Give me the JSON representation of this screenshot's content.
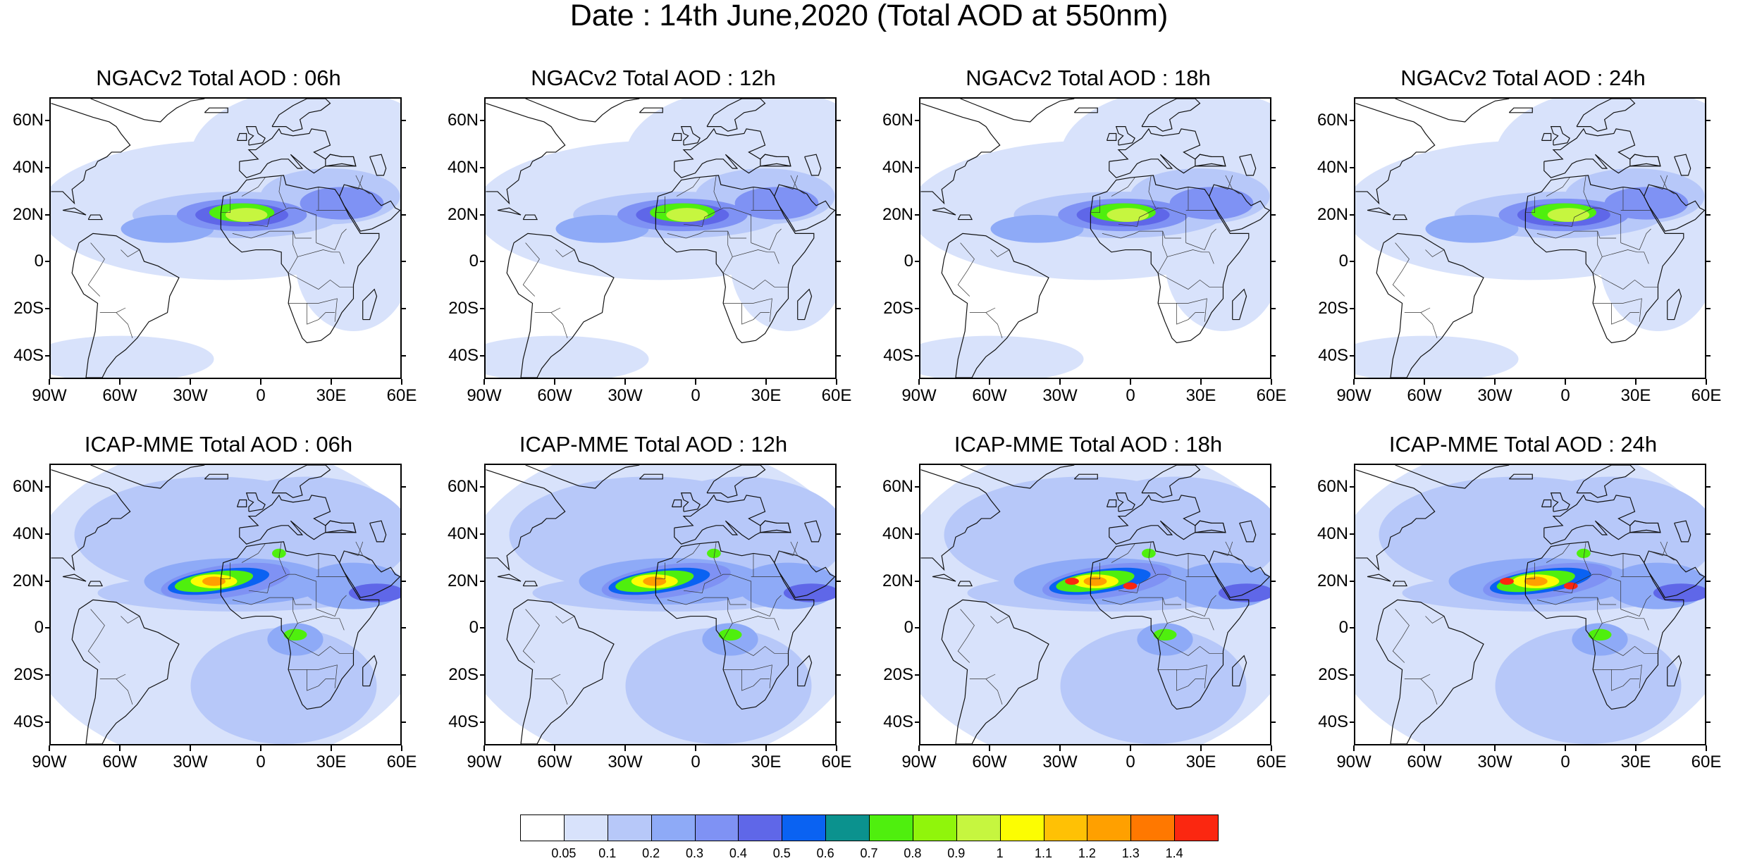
{
  "figure_title": "Date : 14th June,2020 (Total AOD at 550nm)",
  "panels": [
    {
      "title": "NGACv2 Total AOD : 06h",
      "row": 0,
      "col": 0
    },
    {
      "title": "NGACv2 Total AOD : 12h",
      "row": 0,
      "col": 1
    },
    {
      "title": "NGACv2 Total AOD : 18h",
      "row": 0,
      "col": 2
    },
    {
      "title": "NGACv2 Total AOD : 24h",
      "row": 0,
      "col": 3
    },
    {
      "title": "ICAP-MME Total AOD : 06h",
      "row": 1,
      "col": 0
    },
    {
      "title": "ICAP-MME Total AOD : 12h",
      "row": 1,
      "col": 1
    },
    {
      "title": "ICAP-MME Total AOD : 18h",
      "row": 1,
      "col": 2
    },
    {
      "title": "ICAP-MME Total AOD : 24h",
      "row": 1,
      "col": 3
    }
  ],
  "map": {
    "lon_range": [
      -90,
      60
    ],
    "lat_range": [
      -50,
      70
    ],
    "lon_ticks": [
      {
        "value": -90,
        "label": "90W"
      },
      {
        "value": -60,
        "label": "60W"
      },
      {
        "value": -30,
        "label": "30W"
      },
      {
        "value": 0,
        "label": "0"
      },
      {
        "value": 30,
        "label": "30E"
      },
      {
        "value": 60,
        "label": "60E"
      }
    ],
    "lat_ticks": [
      {
        "value": 60,
        "label": "60N"
      },
      {
        "value": 40,
        "label": "40N"
      },
      {
        "value": 20,
        "label": "20N"
      },
      {
        "value": 0,
        "label": "0"
      },
      {
        "value": -20,
        "label": "20S"
      },
      {
        "value": -40,
        "label": "40S"
      }
    ]
  },
  "colorbar": {
    "colors": [
      "#ffffff",
      "#d8e2fb",
      "#b7c8f9",
      "#8eaaf7",
      "#7f92f4",
      "#5f67e8",
      "#0a62f2",
      "#0b928e",
      "#4fef0e",
      "#90f50b",
      "#c6f63f",
      "#fcfd02",
      "#ffc105",
      "#ffa000",
      "#ff7800",
      "#fb2710"
    ],
    "labels": [
      "0.05",
      "0.1",
      "0.2",
      "0.3",
      "0.4",
      "0.5",
      "0.6",
      "0.7",
      "0.8",
      "0.9",
      "1",
      "1.1",
      "1.2",
      "1.3",
      "1.4"
    ]
  }
}
